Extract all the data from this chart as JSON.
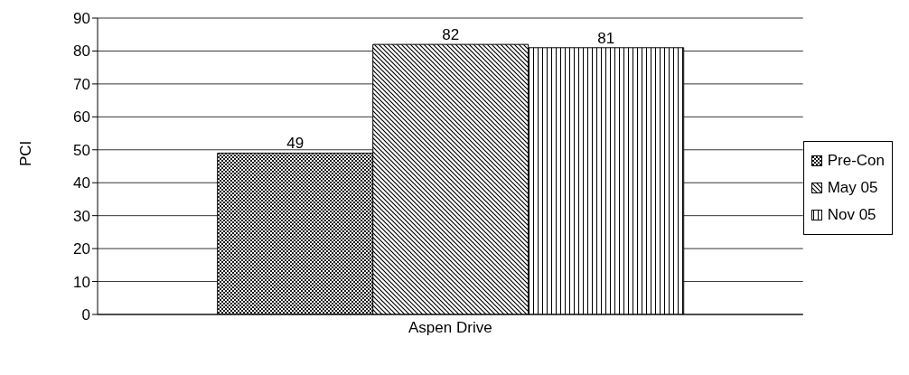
{
  "chart_data": {
    "type": "bar",
    "ylabel": "PCI",
    "categories": [
      "Aspen Drive"
    ],
    "series": [
      {
        "name": "Pre-Con",
        "color": "#000000",
        "values": [
          49
        ]
      },
      {
        "name": "May 05",
        "color": "#000000",
        "values": [
          82
        ]
      },
      {
        "name": "Nov 05",
        "color": "#000000",
        "values": [
          81
        ]
      }
    ],
    "ylim": [
      0,
      90
    ],
    "yticks": [
      0,
      10,
      20,
      30,
      40,
      50,
      60,
      70,
      80,
      90
    ],
    "grid": "y",
    "legend": "right",
    "data_labels": true
  }
}
